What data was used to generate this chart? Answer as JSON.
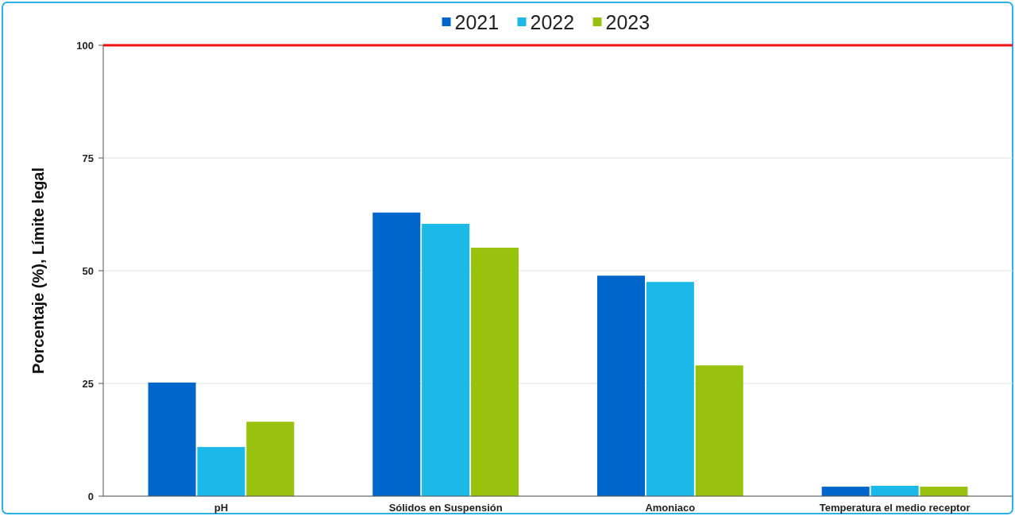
{
  "chart_data": {
    "type": "bar",
    "ylabel": "Porcentaje (%), Límite legal",
    "categories": [
      "pH",
      "Sólidos en Suspensión",
      "Amoniaco",
      "Temperatura el medio receptor"
    ],
    "series": [
      {
        "name": "2021",
        "color": "#0066cc",
        "values": [
          25.2,
          62.9,
          48.9,
          2.1
        ]
      },
      {
        "name": "2022",
        "color": "#1ab9e8",
        "values": [
          10.9,
          60.4,
          47.5,
          2.3
        ]
      },
      {
        "name": "2023",
        "color": "#99c20f",
        "values": [
          16.5,
          55.1,
          29.0,
          2.1
        ]
      }
    ],
    "ylim": [
      0,
      100
    ],
    "yticks": [
      0,
      25,
      50,
      75,
      100
    ],
    "grid": "y",
    "legend": "top",
    "ref_lines": [
      {
        "axis": "y",
        "value": 100,
        "color": "#ee1111"
      }
    ]
  }
}
